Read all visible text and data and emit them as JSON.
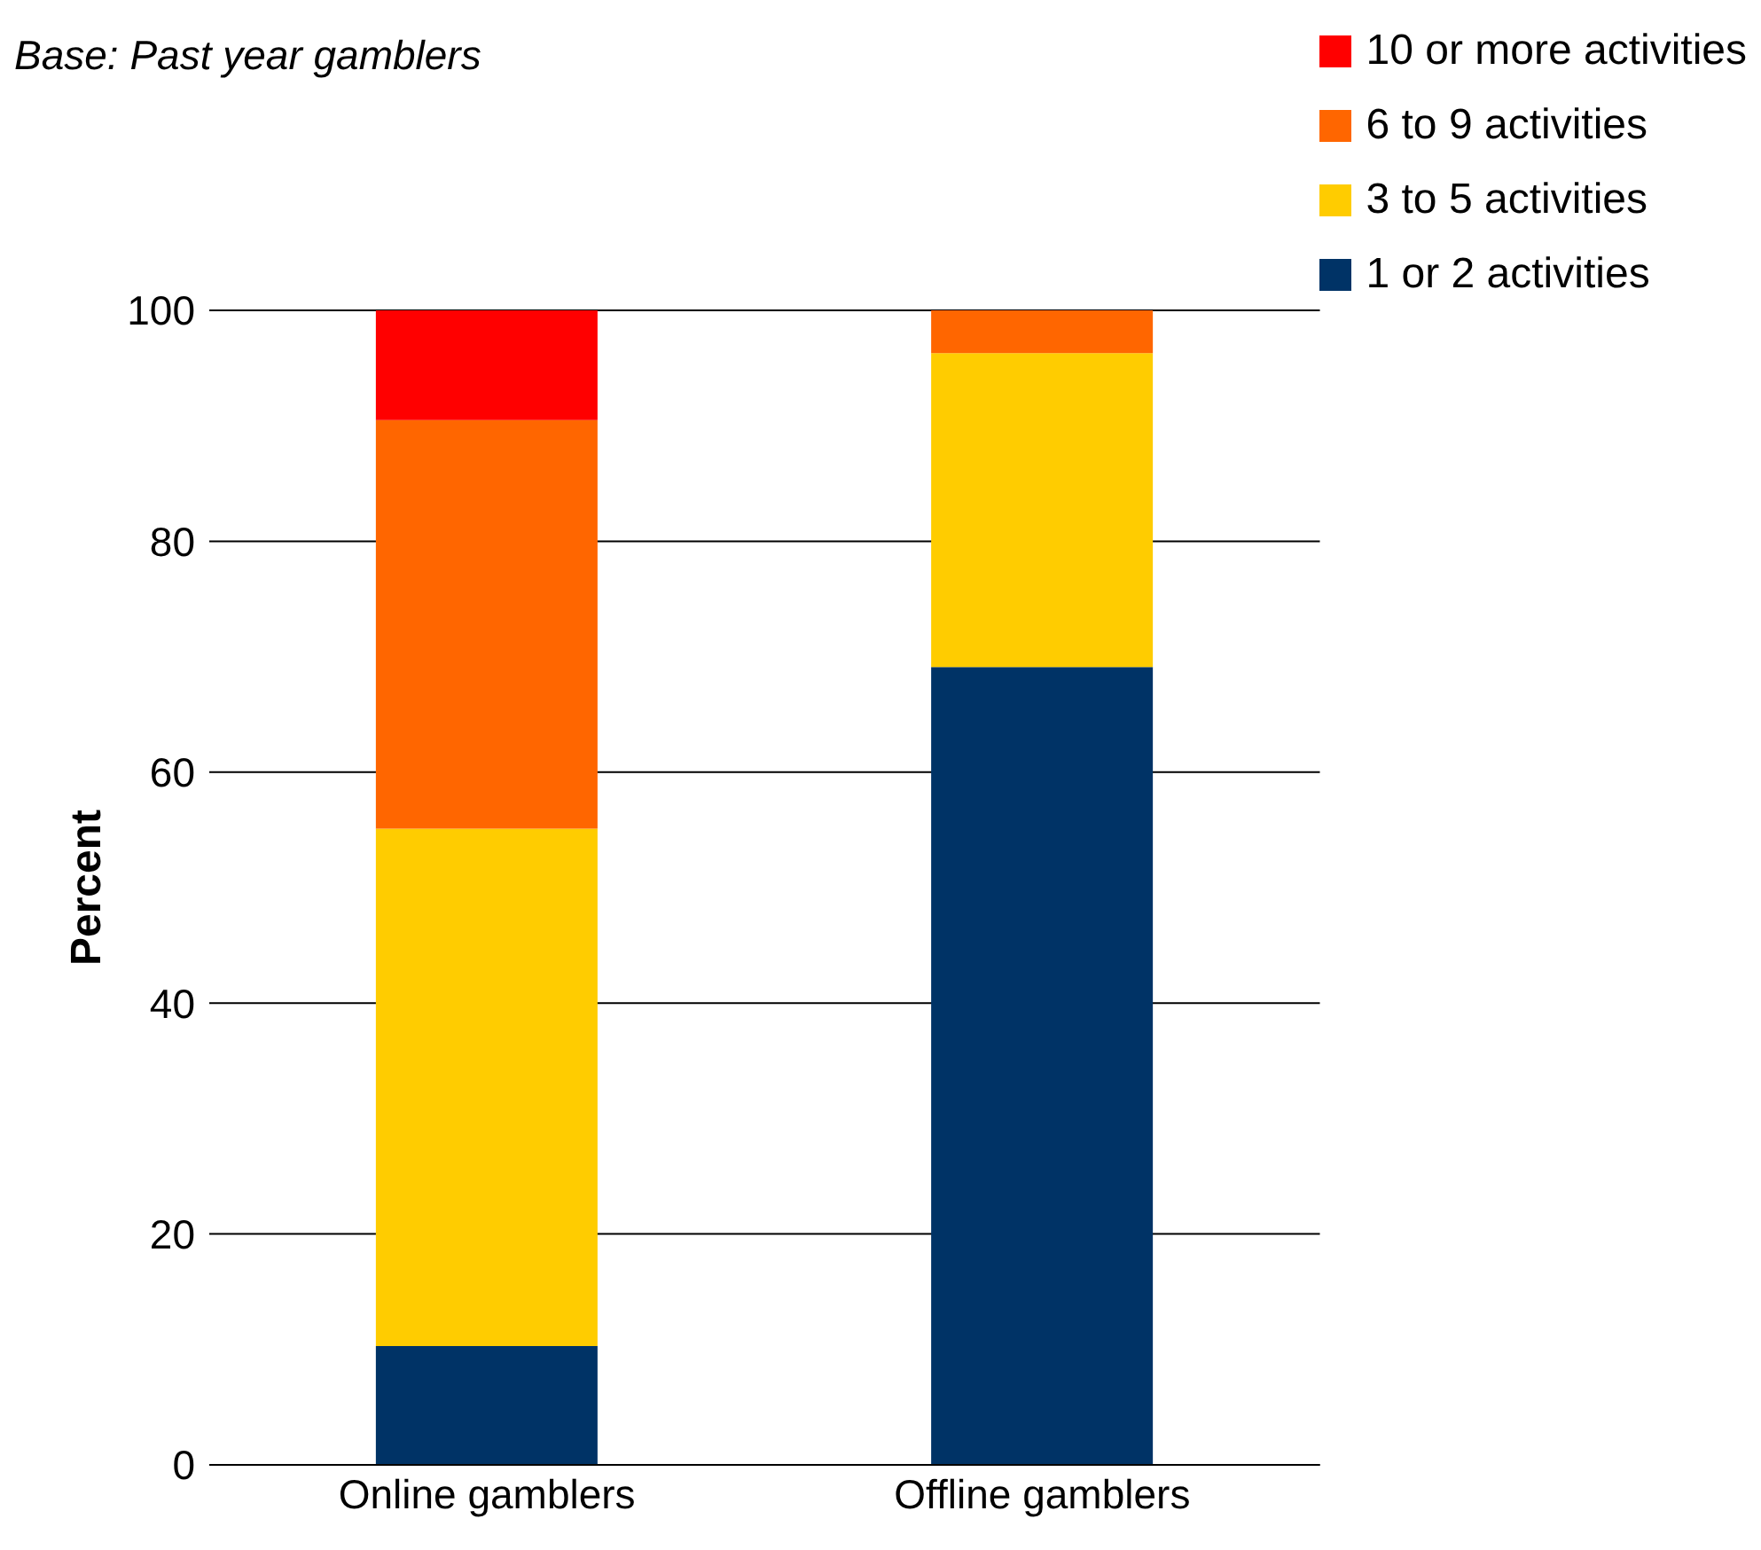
{
  "chart_data": {
    "type": "bar",
    "stacked": true,
    "ylabel": "Percent",
    "annotations": [
      "Base: Past year gamblers"
    ],
    "categories": [
      "Online gamblers",
      "Offline gamblers"
    ],
    "series": [
      {
        "name": "1 or 2 activities",
        "color": "#003366",
        "values": [
          10.3,
          69.1
        ]
      },
      {
        "name": "3 to 5 activities",
        "color": "#ffcc00",
        "values": [
          44.8,
          27.2
        ]
      },
      {
        "name": "6 to 9 activities",
        "color": "#ff6600",
        "values": [
          35.4,
          3.7
        ]
      },
      {
        "name": "10 or more activities",
        "color": "#ff0000",
        "values": [
          9.5,
          0
        ]
      }
    ],
    "ylim": [
      0,
      100
    ],
    "yticks": [
      0,
      20,
      40,
      60,
      80,
      100
    ],
    "grid": "y",
    "legend": "top right"
  }
}
